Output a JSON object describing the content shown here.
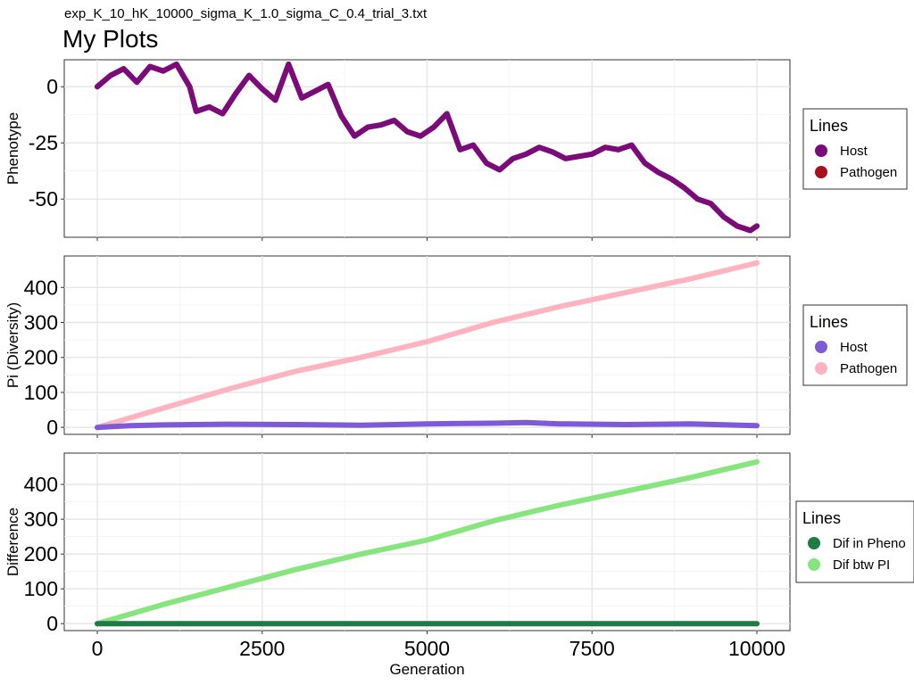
{
  "subtitle": "exp_K_10_hK_10000_sigma_K_1.0_sigma_C_0.4_trial_3.txt",
  "title": "My Plots",
  "chart_data": [
    {
      "type": "line",
      "ylabel": "Phenotype",
      "xlabel": "",
      "xlim": [
        0,
        10000
      ],
      "ylim": [
        -67,
        12
      ],
      "yticks": [
        "0",
        "-25",
        "-50"
      ],
      "ytick_values": [
        0,
        -25,
        -50
      ],
      "xticks": [
        0,
        2500,
        5000,
        7500,
        10000
      ],
      "grid": true,
      "legend": {
        "title": "Lines",
        "placement": "right",
        "entries": [
          {
            "label": "Host",
            "color": "#7b0a7b"
          },
          {
            "label": "Pathogen",
            "color": "#a8101e"
          }
        ]
      },
      "series": [
        {
          "name": "Pathogen",
          "color": "#a8101e",
          "x": [
            0,
            200,
            400,
            600,
            800,
            1000,
            1200,
            1400,
            1500,
            1700,
            1900,
            2100,
            2300,
            2500,
            2700,
            2900,
            3100,
            3300,
            3500,
            3700,
            3900,
            4100,
            4300,
            4500,
            4700,
            4900,
            5100,
            5300,
            5500,
            5700,
            5900,
            6100,
            6300,
            6500,
            6700,
            6900,
            7100,
            7300,
            7500,
            7700,
            7900,
            8100,
            8300,
            8500,
            8700,
            8900,
            9100,
            9300,
            9500,
            9700,
            9900,
            10000
          ],
          "y": [
            0,
            5,
            8,
            2,
            9,
            7,
            10,
            0,
            -11,
            -9,
            -12,
            -3,
            5,
            -1,
            -6,
            10,
            -5,
            -2,
            1,
            -13,
            -22,
            -18,
            -17,
            -15,
            -20,
            -22,
            -18,
            -12,
            -28,
            -26,
            -34,
            -37,
            -32,
            -30,
            -27,
            -29,
            -32,
            -31,
            -30,
            -27,
            -28,
            -26,
            -34,
            -38,
            -41,
            -45,
            -50,
            -52,
            -58,
            -62,
            -64,
            -62
          ]
        },
        {
          "name": "Host",
          "color": "#7b0a7b",
          "x": [
            0,
            200,
            400,
            600,
            800,
            1000,
            1200,
            1400,
            1500,
            1700,
            1900,
            2100,
            2300,
            2500,
            2700,
            2900,
            3100,
            3300,
            3500,
            3700,
            3900,
            4100,
            4300,
            4500,
            4700,
            4900,
            5100,
            5300,
            5500,
            5700,
            5900,
            6100,
            6300,
            6500,
            6700,
            6900,
            7100,
            7300,
            7500,
            7700,
            7900,
            8100,
            8300,
            8500,
            8700,
            8900,
            9100,
            9300,
            9500,
            9700,
            9900,
            10000
          ],
          "y": [
            0,
            5,
            8,
            2,
            9,
            7,
            10,
            0,
            -11,
            -9,
            -12,
            -3,
            5,
            -1,
            -6,
            10,
            -5,
            -2,
            1,
            -13,
            -22,
            -18,
            -17,
            -15,
            -20,
            -22,
            -18,
            -12,
            -28,
            -26,
            -34,
            -37,
            -32,
            -30,
            -27,
            -29,
            -32,
            -31,
            -30,
            -27,
            -28,
            -26,
            -34,
            -38,
            -41,
            -45,
            -50,
            -52,
            -58,
            -62,
            -64,
            -62
          ]
        }
      ]
    },
    {
      "type": "line",
      "ylabel": "Pi (Diversity)",
      "xlabel": "",
      "xlim": [
        0,
        10000
      ],
      "ylim": [
        -20,
        490
      ],
      "yticks": [
        "0",
        "100",
        "200",
        "300",
        "400"
      ],
      "ytick_values": [
        0,
        100,
        200,
        300,
        400
      ],
      "xticks": [
        0,
        2500,
        5000,
        7500,
        10000
      ],
      "grid": true,
      "legend": {
        "title": "Lines",
        "placement": "right",
        "entries": [
          {
            "label": "Host",
            "color": "#7f5ad6"
          },
          {
            "label": "Pathogen",
            "color": "#ffb3c1"
          }
        ]
      },
      "series": [
        {
          "name": "Pathogen",
          "color": "#ffb3c1",
          "x": [
            0,
            1000,
            2000,
            3000,
            4000,
            5000,
            6000,
            7000,
            8000,
            9000,
            10000
          ],
          "y": [
            0,
            55,
            110,
            160,
            200,
            245,
            300,
            345,
            385,
            425,
            470
          ]
        },
        {
          "name": "Host",
          "color": "#7f5ad6",
          "x": [
            0,
            500,
            1000,
            2000,
            3000,
            4000,
            5000,
            6000,
            6500,
            7000,
            8000,
            9000,
            10000
          ],
          "y": [
            0,
            5,
            7,
            9,
            8,
            6,
            10,
            12,
            14,
            10,
            8,
            10,
            5
          ]
        }
      ]
    },
    {
      "type": "line",
      "ylabel": "Difference",
      "xlabel": "Generation",
      "xlim": [
        0,
        10000
      ],
      "ylim": [
        -20,
        490
      ],
      "yticks": [
        "0",
        "100",
        "200",
        "300",
        "400"
      ],
      "ytick_values": [
        0,
        100,
        200,
        300,
        400
      ],
      "xticks": [
        0,
        2500,
        5000,
        7500,
        10000
      ],
      "xtick_labels": [
        "0",
        "2500",
        "5000",
        "7500",
        "10000"
      ],
      "grid": true,
      "legend": {
        "title": "Lines",
        "placement": "right",
        "entries": [
          {
            "label": "Dif in Pheno",
            "color": "#1f7a45"
          },
          {
            "label": "Dif btw PI",
            "color": "#86e57c"
          }
        ]
      },
      "series": [
        {
          "name": "Dif btw PI",
          "color": "#86e57c",
          "x": [
            0,
            1000,
            2000,
            3000,
            4000,
            5000,
            6000,
            7000,
            8000,
            9000,
            10000
          ],
          "y": [
            0,
            55,
            105,
            155,
            200,
            240,
            295,
            340,
            380,
            420,
            465
          ]
        },
        {
          "name": "Dif in Pheno",
          "color": "#1f7a45",
          "x": [
            0,
            2500,
            5000,
            7500,
            10000
          ],
          "y": [
            0,
            0,
            0,
            0,
            0
          ]
        }
      ]
    }
  ]
}
